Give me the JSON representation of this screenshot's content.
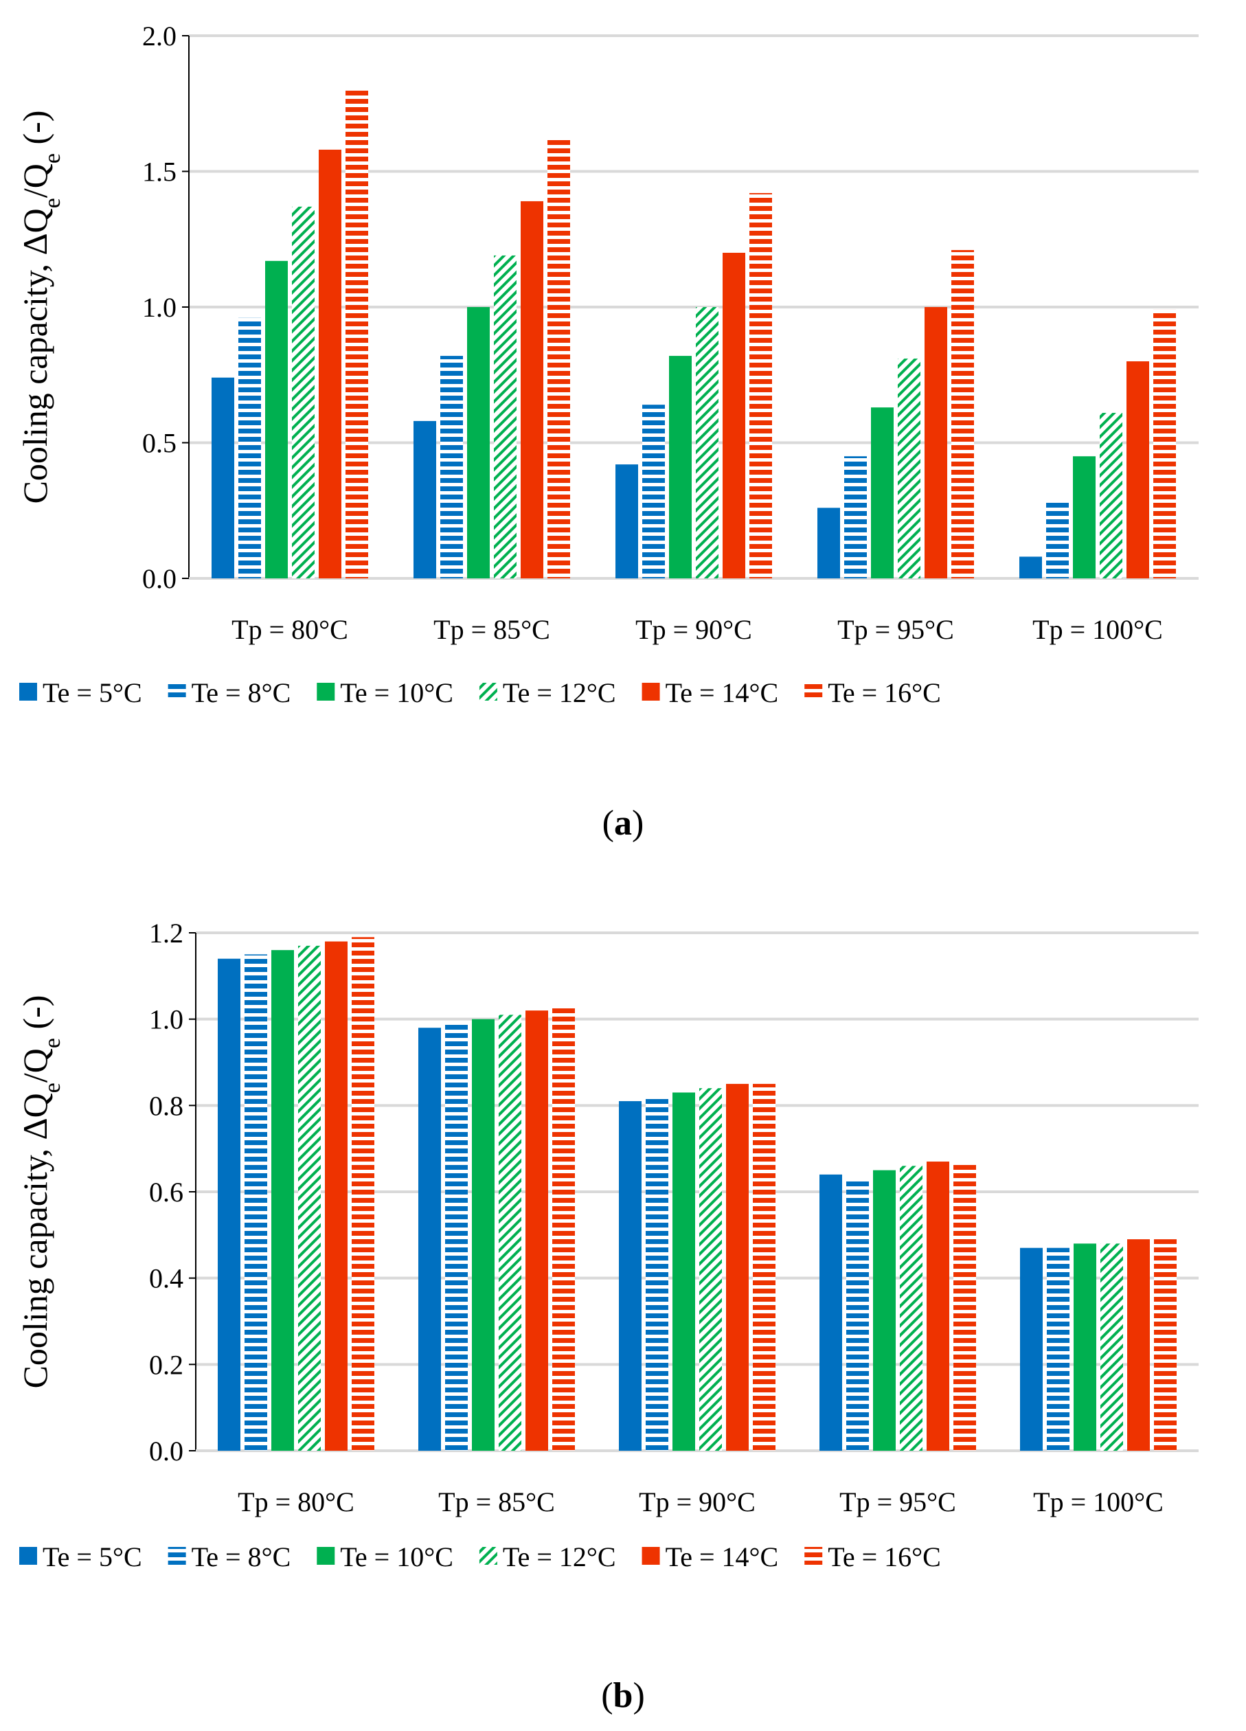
{
  "colors": {
    "blue": "#0070C0",
    "green": "#00B050",
    "red": "#EE3300"
  },
  "series_styles": [
    {
      "color": "blue",
      "pattern": "solid"
    },
    {
      "color": "blue",
      "pattern": "hstripe"
    },
    {
      "color": "green",
      "pattern": "solid"
    },
    {
      "color": "green",
      "pattern": "diagonal"
    },
    {
      "color": "red",
      "pattern": "solid"
    },
    {
      "color": "red",
      "pattern": "hstripe"
    }
  ],
  "chart_data": [
    {
      "type": "bar",
      "panel_label": "a",
      "ylabel": "Cooling capacity, ΔQe/Qe (-)",
      "ylabel_parts": {
        "pre": "Cooling capacity, ΔQ",
        "sub1": "e",
        "mid": "/Q",
        "sub2": "e",
        "post": " (-)"
      },
      "ylim": [
        0,
        2.0
      ],
      "yticks": [
        "0.0",
        "0.5",
        "1.0",
        "1.5",
        "2.0"
      ],
      "grid": true,
      "legend_position": "bottom",
      "categories": [
        "Tp = 80°C",
        "Tp = 85°C",
        "Tp = 90°C",
        "Tp = 95°C",
        "Tp = 100°C"
      ],
      "series": [
        {
          "name": "Te = 5°C",
          "values": [
            0.74,
            0.58,
            0.42,
            0.26,
            0.08
          ]
        },
        {
          "name": "Te = 8°C",
          "values": [
            0.96,
            0.82,
            0.64,
            0.45,
            0.29
          ]
        },
        {
          "name": "Te = 10°C",
          "values": [
            1.17,
            1.0,
            0.82,
            0.63,
            0.45
          ]
        },
        {
          "name": "Te = 12°C",
          "values": [
            1.37,
            1.19,
            1.0,
            0.81,
            0.61
          ]
        },
        {
          "name": "Te = 14°C",
          "values": [
            1.58,
            1.39,
            1.2,
            1.0,
            0.8
          ]
        },
        {
          "name": "Te = 16°C",
          "values": [
            1.81,
            1.62,
            1.42,
            1.21,
            0.99
          ]
        }
      ]
    },
    {
      "type": "bar",
      "panel_label": "b",
      "ylabel": "Cooling capacity, ΔQe/Qe (-)",
      "ylabel_parts": {
        "pre": "Cooling capacity, ΔQ",
        "sub1": "e",
        "mid": "/Q",
        "sub2": "e",
        "post": " (-)"
      },
      "ylim": [
        0,
        1.2
      ],
      "yticks": [
        "0.0",
        "0.2",
        "0.4",
        "0.6",
        "0.8",
        "1.0",
        "1.2"
      ],
      "grid": true,
      "legend_position": "bottom",
      "categories": [
        "Tp = 80°C",
        "Tp = 85°C",
        "Tp = 90°C",
        "Tp = 95°C",
        "Tp = 100°C"
      ],
      "series": [
        {
          "name": "Te = 5°C",
          "values": [
            1.14,
            0.98,
            0.81,
            0.64,
            0.47
          ]
        },
        {
          "name": "Te = 8°C",
          "values": [
            1.15,
            0.99,
            0.82,
            0.63,
            0.47
          ]
        },
        {
          "name": "Te = 10°C",
          "values": [
            1.16,
            1.0,
            0.83,
            0.65,
            0.48
          ]
        },
        {
          "name": "Te = 12°C",
          "values": [
            1.17,
            1.01,
            0.84,
            0.66,
            0.48
          ]
        },
        {
          "name": "Te = 14°C",
          "values": [
            1.18,
            1.02,
            0.85,
            0.67,
            0.49
          ]
        },
        {
          "name": "Te = 16°C",
          "values": [
            1.19,
            1.03,
            0.85,
            0.67,
            0.49
          ]
        }
      ]
    }
  ]
}
